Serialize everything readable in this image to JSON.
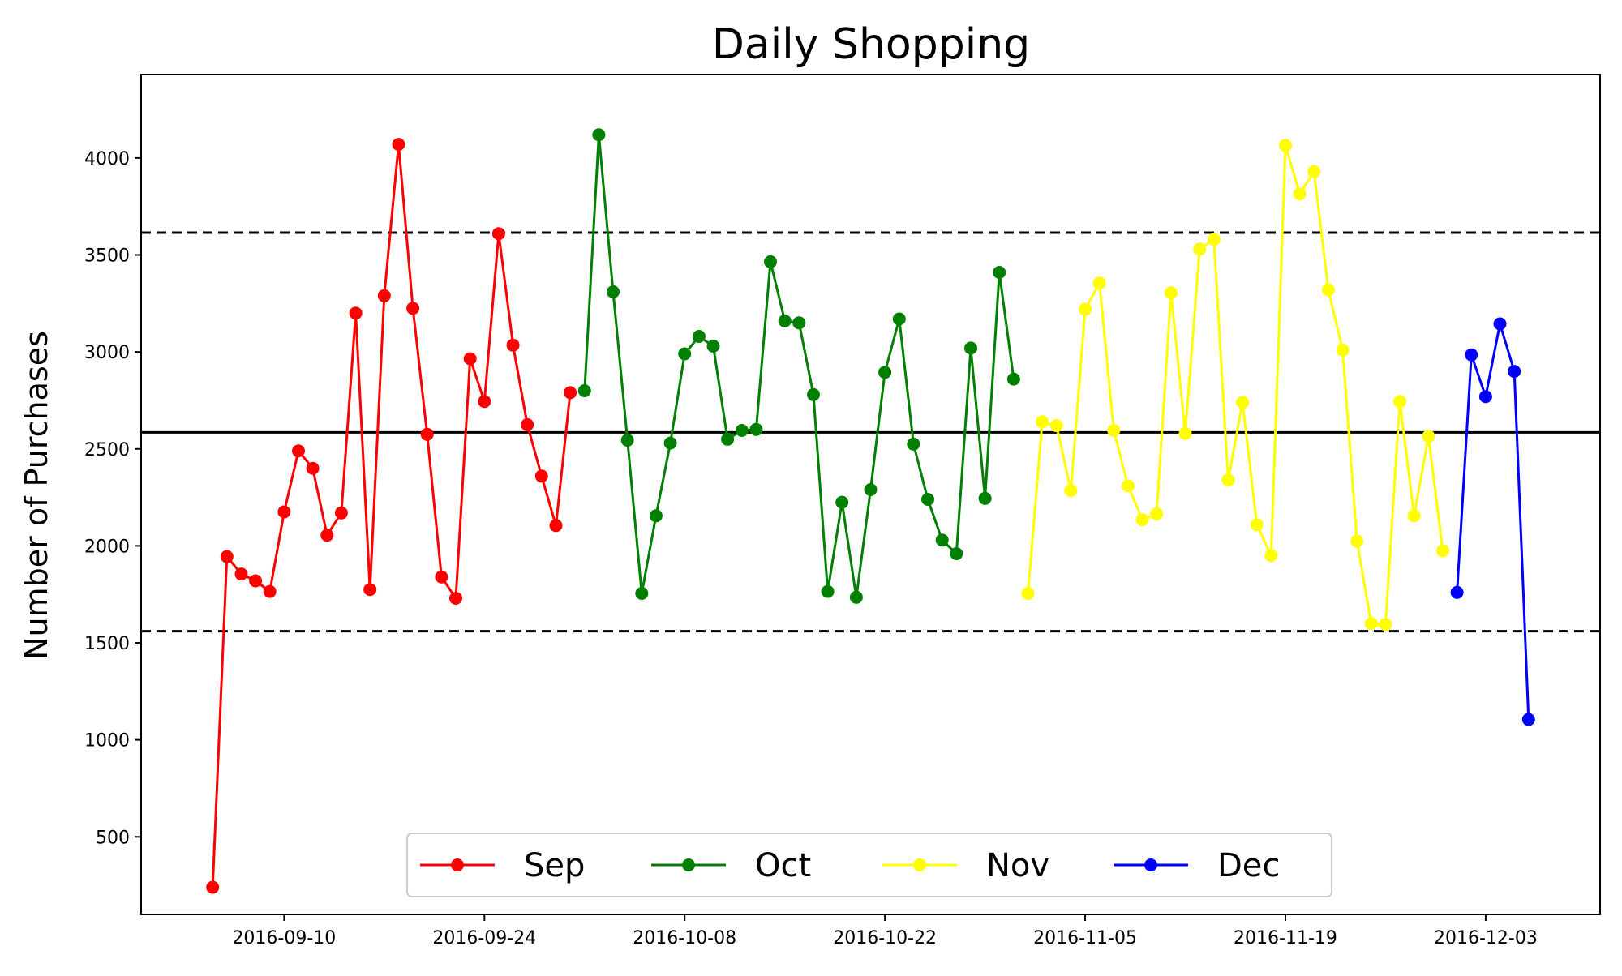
{
  "chart_data": {
    "type": "line",
    "title": "Daily Shopping",
    "xlabel": "",
    "ylabel": "Number of Purchases",
    "x_axis_type": "date",
    "xlim": [
      "2016-08-31",
      "2016-12-11"
    ],
    "ylim": [
      100,
      4430
    ],
    "yticks": [
      500,
      1000,
      1500,
      2000,
      2500,
      3000,
      3500,
      4000
    ],
    "xticks": [
      "2016-09-10",
      "2016-09-24",
      "2016-10-08",
      "2016-10-22",
      "2016-11-05",
      "2016-11-19",
      "2016-12-03"
    ],
    "grid": false,
    "legend": {
      "position": "bottom-center",
      "entries": [
        "Sep",
        "Oct",
        "Nov",
        "Dec"
      ]
    },
    "reference_lines": [
      {
        "style": "solid",
        "y": 2585
      },
      {
        "style": "dashed",
        "y": 3615
      },
      {
        "style": "dashed",
        "y": 1560
      }
    ],
    "series": [
      {
        "name": "Sep",
        "color": "#ff0000",
        "x": [
          "2016-09-05",
          "2016-09-06",
          "2016-09-07",
          "2016-09-08",
          "2016-09-09",
          "2016-09-10",
          "2016-09-11",
          "2016-09-12",
          "2016-09-13",
          "2016-09-14",
          "2016-09-15",
          "2016-09-16",
          "2016-09-17",
          "2016-09-18",
          "2016-09-19",
          "2016-09-20",
          "2016-09-21",
          "2016-09-22",
          "2016-09-23",
          "2016-09-24",
          "2016-09-25",
          "2016-09-26",
          "2016-09-27",
          "2016-09-28",
          "2016-09-29",
          "2016-09-30"
        ],
        "values": [
          240,
          1945,
          1855,
          1820,
          1765,
          2175,
          2490,
          2400,
          2055,
          2170,
          3200,
          1775,
          3290,
          4070,
          3225,
          2575,
          1840,
          1730,
          2965,
          2745,
          3610,
          3035,
          2625,
          2360,
          2105,
          2790
        ]
      },
      {
        "name": "Oct",
        "color": "#008000",
        "x": [
          "2016-10-01",
          "2016-10-02",
          "2016-10-03",
          "2016-10-04",
          "2016-10-05",
          "2016-10-06",
          "2016-10-07",
          "2016-10-08",
          "2016-10-09",
          "2016-10-10",
          "2016-10-11",
          "2016-10-12",
          "2016-10-13",
          "2016-10-14",
          "2016-10-15",
          "2016-10-16",
          "2016-10-17",
          "2016-10-18",
          "2016-10-19",
          "2016-10-20",
          "2016-10-21",
          "2016-10-22",
          "2016-10-23",
          "2016-10-24",
          "2016-10-25",
          "2016-10-26",
          "2016-10-27",
          "2016-10-28",
          "2016-10-29",
          "2016-10-30",
          "2016-10-31"
        ],
        "values": [
          2800,
          4120,
          3310,
          2545,
          1755,
          2155,
          2530,
          2990,
          3080,
          3030,
          2550,
          2595,
          2600,
          3465,
          3160,
          3150,
          2780,
          1765,
          2225,
          1735,
          2290,
          2895,
          3170,
          2525,
          2240,
          2030,
          1960,
          3020,
          2245,
          3410,
          2860
        ]
      },
      {
        "name": "Nov",
        "color": "#ffff00",
        "x": [
          "2016-11-01",
          "2016-11-02",
          "2016-11-03",
          "2016-11-04",
          "2016-11-05",
          "2016-11-06",
          "2016-11-07",
          "2016-11-08",
          "2016-11-09",
          "2016-11-10",
          "2016-11-11",
          "2016-11-12",
          "2016-11-13",
          "2016-11-14",
          "2016-11-15",
          "2016-11-16",
          "2016-11-17",
          "2016-11-18",
          "2016-11-19",
          "2016-11-20",
          "2016-11-21",
          "2016-11-22",
          "2016-11-23",
          "2016-11-24",
          "2016-11-25",
          "2016-11-26",
          "2016-11-27",
          "2016-11-28",
          "2016-11-29",
          "2016-11-30"
        ],
        "values": [
          1755,
          2640,
          2620,
          2285,
          3220,
          3355,
          2595,
          2310,
          2135,
          2165,
          3305,
          2580,
          3530,
          3580,
          2340,
          2740,
          2110,
          1950,
          4065,
          3815,
          3930,
          3320,
          3010,
          2025,
          1600,
          1595,
          2745,
          2155,
          2565,
          1975
        ]
      },
      {
        "name": "Dec",
        "color": "#0000ff",
        "x": [
          "2016-12-01",
          "2016-12-02",
          "2016-12-03",
          "2016-12-04",
          "2016-12-05",
          "2016-12-06"
        ],
        "values": [
          1760,
          2985,
          2770,
          3145,
          2900,
          1105
        ]
      }
    ]
  }
}
